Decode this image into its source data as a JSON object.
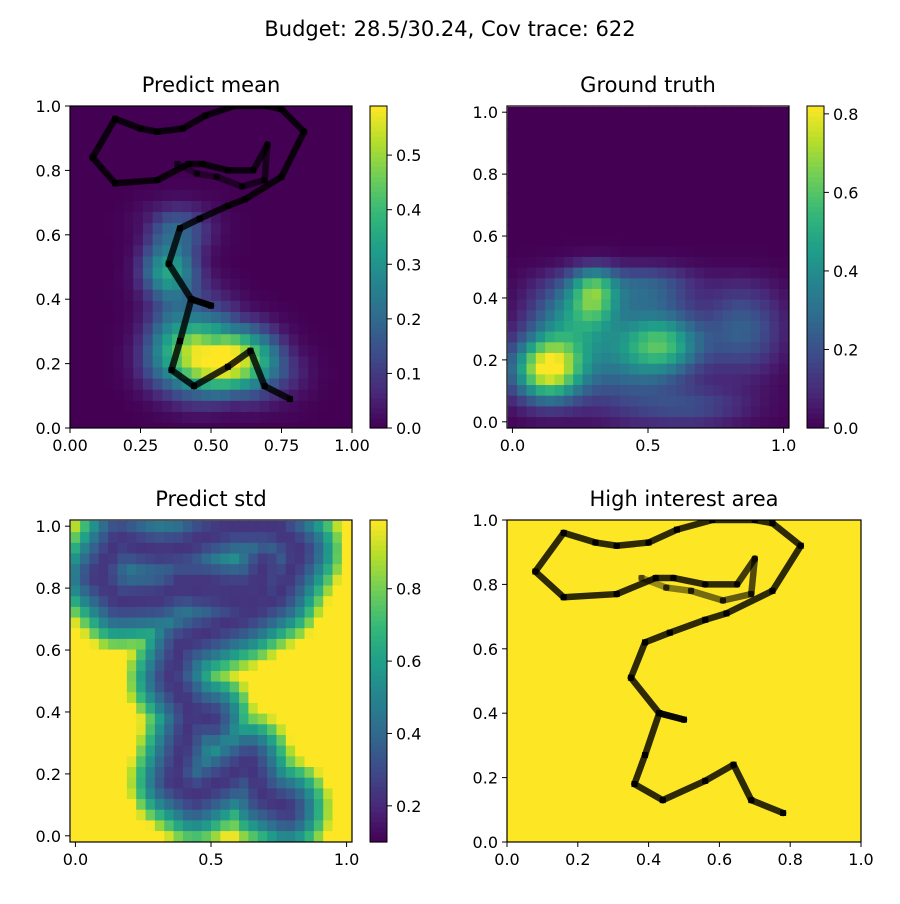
{
  "suptitle": "Budget: 28.5/30.24,  Cov trace: 622",
  "colors": {
    "path": "#000000",
    "high_interest_fill": "#fde725",
    "axis": "#000000"
  },
  "chart_data": [
    {
      "type": "heatmap",
      "title": "Predict mean",
      "xlim": [
        0,
        1
      ],
      "ylim": [
        0,
        1
      ],
      "xticks": [
        "0.00",
        "0.25",
        "0.50",
        "0.75",
        "1.00"
      ],
      "yticks": [
        "0.0",
        "0.2",
        "0.4",
        "0.6",
        "0.8",
        "1.0"
      ],
      "colorbar": {
        "range": [
          0,
          0.59
        ],
        "ticks": [
          "0.0",
          "0.1",
          "0.2",
          "0.3",
          "0.4",
          "0.5"
        ]
      },
      "overlay": "path"
    },
    {
      "type": "heatmap",
      "title": "Ground truth",
      "xlim": [
        -0.02,
        1.02
      ],
      "ylim": [
        -0.02,
        1.02
      ],
      "xticks": [
        "0.0",
        "0.5",
        "1.0"
      ],
      "yticks": [
        "0.0",
        "0.2",
        "0.4",
        "0.6",
        "0.8",
        "1.0"
      ],
      "colorbar": {
        "range": [
          0,
          0.82
        ],
        "ticks": [
          "0.0",
          "0.2",
          "0.4",
          "0.6",
          "0.8"
        ]
      },
      "overlay": "none"
    },
    {
      "type": "heatmap",
      "title": "Predict std",
      "xlim": [
        -0.02,
        1.02
      ],
      "ylim": [
        -0.02,
        1.02
      ],
      "xticks": [
        "0.0",
        "0.5",
        "1.0"
      ],
      "yticks": [
        "0.0",
        "0.2",
        "0.4",
        "0.6",
        "0.8",
        "1.0"
      ],
      "colorbar": {
        "range": [
          0.1,
          0.99
        ],
        "ticks": [
          "0.2",
          "0.4",
          "0.6",
          "0.8"
        ]
      },
      "overlay": "none"
    },
    {
      "type": "heatmap",
      "title": "High interest area",
      "xlim": [
        0,
        1
      ],
      "ylim": [
        0,
        1
      ],
      "xticks": [
        "0.0",
        "0.2",
        "0.4",
        "0.6",
        "0.8",
        "1.0"
      ],
      "yticks": [
        "0.0",
        "0.2",
        "0.4",
        "0.6",
        "0.8",
        "1.0"
      ],
      "overlay": "path"
    }
  ],
  "path": {
    "x": [
      0.78,
      0.69,
      0.64,
      0.56,
      0.44,
      0.36,
      0.39,
      0.43,
      0.5,
      0.43,
      0.35,
      0.39,
      0.46,
      0.56,
      0.62,
      0.75,
      0.83,
      0.75,
      0.7,
      0.58,
      0.48,
      0.4,
      0.31,
      0.25,
      0.16,
      0.08,
      0.16,
      0.31,
      0.42,
      0.47,
      0.56,
      0.65,
      0.7,
      0.69,
      0.61,
      0.52,
      0.45,
      0.38
    ],
    "y": [
      0.09,
      0.13,
      0.24,
      0.19,
      0.13,
      0.18,
      0.27,
      0.4,
      0.38,
      0.4,
      0.51,
      0.62,
      0.65,
      0.69,
      0.71,
      0.78,
      0.92,
      0.99,
      1.0,
      1.0,
      0.97,
      0.93,
      0.92,
      0.93,
      0.96,
      0.84,
      0.76,
      0.77,
      0.82,
      0.82,
      0.8,
      0.8,
      0.88,
      0.77,
      0.75,
      0.78,
      0.79,
      0.82
    ]
  }
}
